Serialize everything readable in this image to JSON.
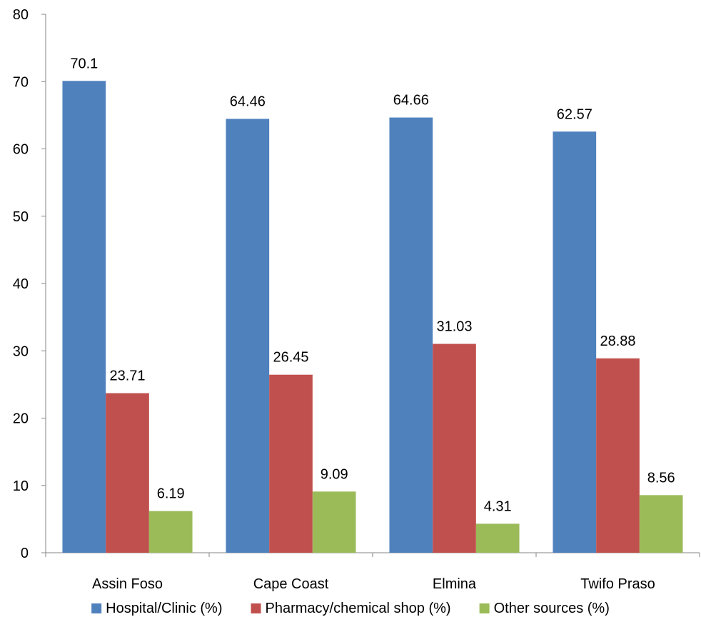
{
  "chart_data": {
    "type": "bar",
    "title": "",
    "xlabel": "",
    "ylabel": "",
    "categories": [
      "Assin Foso",
      "Cape Coast",
      "Elmina",
      "Twifo Praso"
    ],
    "series": [
      {
        "name": "Hospital/Clinic (%)",
        "color": "#4f81bd",
        "values": [
          70.1,
          64.46,
          64.66,
          62.57
        ]
      },
      {
        "name": "Pharmacy/chemical shop (%)",
        "color": "#c0504d",
        "values": [
          23.71,
          26.45,
          31.03,
          28.88
        ]
      },
      {
        "name": "Other sources (%)",
        "color": "#9bbb59",
        "values": [
          6.19,
          9.09,
          4.31,
          8.56
        ]
      }
    ],
    "ylim": [
      0,
      80
    ],
    "yticks": [
      0,
      10,
      20,
      30,
      40,
      50,
      60,
      70,
      80
    ],
    "grid": false,
    "legend_position": "bottom"
  }
}
